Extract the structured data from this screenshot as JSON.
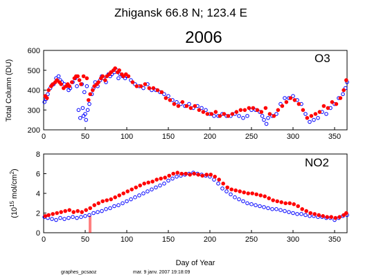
{
  "header": {
    "station": "Zhigansk  66.8 N; 123.4 E",
    "year": "2006"
  },
  "footer": {
    "program": "graphes_pcsaoz",
    "timestamp": "mar. 9 janv. 2007 19:18:09"
  },
  "colors": {
    "am": "#0000ff",
    "pm": "#ff0000",
    "axes": "#000000"
  },
  "chart_data": [
    {
      "type": "scatter",
      "panel_label": "O3",
      "xlabel": "",
      "ylabel": "Total Column  (DU)",
      "xlim": [
        0,
        365
      ],
      "ylim": [
        200,
        600
      ],
      "xticks": [
        "0",
        "50",
        "100",
        "150",
        "200",
        "250",
        "300",
        "350"
      ],
      "yticks": [
        "200",
        "300",
        "400",
        "500",
        "600"
      ],
      "grid": false,
      "series": [
        {
          "color": "#0000ff",
          "marker": "open-circle",
          "x": [
            1,
            3,
            5,
            8,
            10,
            12,
            15,
            18,
            20,
            22,
            25,
            28,
            30,
            32,
            35,
            38,
            40,
            42,
            44,
            46,
            47,
            48,
            49,
            50,
            51,
            52,
            53,
            55,
            58,
            60,
            62,
            65,
            68,
            70,
            72,
            75,
            78,
            80,
            82,
            85,
            88,
            90,
            92,
            95,
            98,
            100,
            105,
            110,
            115,
            120,
            125,
            130,
            135,
            140,
            145,
            150,
            155,
            160,
            165,
            170,
            175,
            180,
            185,
            190,
            195,
            200,
            205,
            210,
            215,
            220,
            225,
            230,
            235,
            240,
            245,
            250,
            255,
            260,
            263,
            265,
            268,
            270,
            275,
            280,
            285,
            290,
            295,
            300,
            305,
            310,
            315,
            320,
            325,
            330,
            335,
            340,
            345,
            350,
            355,
            360,
            363,
            365
          ],
          "y": [
            340,
            355,
            380,
            410,
            425,
            430,
            460,
            470,
            450,
            440,
            430,
            420,
            400,
            410,
            440,
            460,
            420,
            300,
            260,
            430,
            310,
            270,
            390,
            280,
            250,
            420,
            300,
            330,
            380,
            410,
            440,
            420,
            450,
            470,
            460,
            440,
            480,
            470,
            480,
            490,
            500,
            460,
            480,
            470,
            460,
            470,
            450,
            430,
            420,
            410,
            430,
            400,
            400,
            390,
            380,
            370,
            350,
            340,
            330,
            320,
            330,
            310,
            320,
            310,
            300,
            280,
            270,
            270,
            280,
            270,
            270,
            280,
            270,
            260,
            270,
            300,
            300,
            290,
            270,
            250,
            230,
            260,
            270,
            280,
            330,
            360,
            360,
            370,
            350,
            330,
            280,
            240,
            250,
            260,
            290,
            280,
            310,
            330,
            360,
            380,
            410,
            440
          ]
        },
        {
          "color": "#ff0000",
          "marker": "filled-circle",
          "x": [
            2,
            4,
            6,
            9,
            11,
            14,
            16,
            19,
            21,
            24,
            27,
            29,
            31,
            34,
            37,
            39,
            41,
            43,
            45,
            48,
            52,
            54,
            56,
            59,
            61,
            64,
            66,
            69,
            71,
            74,
            76,
            79,
            81,
            84,
            86,
            89,
            91,
            94,
            96,
            99,
            102,
            107,
            112,
            117,
            122,
            127,
            132,
            137,
            142,
            147,
            152,
            157,
            162,
            167,
            172,
            177,
            182,
            187,
            192,
            197,
            202,
            207,
            212,
            217,
            222,
            227,
            232,
            237,
            242,
            247,
            252,
            257,
            262,
            267,
            272,
            277,
            282,
            287,
            292,
            297,
            302,
            307,
            312,
            317,
            322,
            327,
            332,
            337,
            342,
            347,
            352,
            357,
            361,
            364
          ],
          "y": [
            370,
            360,
            400,
            420,
            430,
            440,
            450,
            440,
            430,
            410,
            420,
            430,
            420,
            440,
            460,
            470,
            470,
            450,
            430,
            470,
            460,
            350,
            380,
            400,
            420,
            430,
            440,
            460,
            470,
            450,
            470,
            480,
            490,
            500,
            510,
            490,
            500,
            480,
            470,
            480,
            470,
            440,
            420,
            420,
            430,
            410,
            410,
            400,
            390,
            360,
            350,
            330,
            320,
            340,
            320,
            310,
            320,
            300,
            290,
            280,
            280,
            290,
            270,
            280,
            270,
            280,
            290,
            300,
            300,
            310,
            310,
            300,
            290,
            310,
            280,
            270,
            300,
            320,
            340,
            360,
            350,
            330,
            300,
            260,
            270,
            280,
            290,
            320,
            310,
            340,
            330,
            360,
            400,
            450
          ]
        }
      ]
    },
    {
      "type": "scatter",
      "panel_label": "NO2",
      "xlabel": "Day of Year",
      "ylabel": "(10^15 mol/cm^2)",
      "ylabel_parts": [
        "(10",
        "15",
        " mol/cm",
        "2",
        ")"
      ],
      "xlim": [
        0,
        365
      ],
      "ylim": [
        0,
        8
      ],
      "xticks": [
        "0",
        "50",
        "100",
        "150",
        "200",
        "250",
        "300",
        "350"
      ],
      "yticks": [
        "0",
        "2",
        "4",
        "6",
        "8"
      ],
      "grid": false,
      "series": [
        {
          "color": "#0000ff",
          "marker": "open-circle",
          "x": [
            1,
            5,
            10,
            15,
            20,
            25,
            30,
            35,
            40,
            45,
            50,
            55,
            60,
            65,
            70,
            75,
            80,
            85,
            90,
            95,
            100,
            105,
            110,
            115,
            120,
            125,
            130,
            135,
            140,
            145,
            150,
            155,
            160,
            165,
            170,
            175,
            180,
            185,
            190,
            195,
            200,
            205,
            210,
            215,
            220,
            225,
            230,
            235,
            240,
            245,
            250,
            255,
            260,
            265,
            270,
            275,
            280,
            285,
            290,
            295,
            300,
            305,
            310,
            315,
            320,
            325,
            330,
            335,
            340,
            345,
            350,
            355,
            360,
            365
          ],
          "y": [
            1.6,
            1.5,
            1.4,
            1.3,
            1.5,
            1.4,
            1.5,
            1.6,
            1.5,
            1.6,
            1.7,
            1.8,
            2.0,
            2.1,
            2.2,
            2.4,
            2.5,
            2.7,
            2.8,
            3.0,
            3.2,
            3.4,
            3.6,
            3.8,
            4.0,
            4.2,
            4.4,
            4.6,
            4.8,
            5.0,
            5.3,
            5.5,
            5.7,
            5.8,
            5.9,
            6.0,
            6.1,
            6.0,
            5.9,
            5.8,
            5.7,
            5.4,
            5.0,
            4.5,
            4.2,
            3.9,
            3.6,
            3.4,
            3.2,
            3.0,
            2.9,
            2.8,
            2.7,
            2.6,
            2.5,
            2.4,
            2.4,
            2.3,
            2.2,
            2.1,
            2.0,
            1.9,
            1.9,
            1.8,
            1.7,
            1.7,
            1.6,
            1.6,
            1.5,
            1.5,
            1.3,
            1.5,
            1.7,
            1.8
          ]
        },
        {
          "color": "#ff0000",
          "marker": "filled-circle",
          "x": [
            2,
            6,
            11,
            16,
            21,
            26,
            31,
            36,
            41,
            46,
            51,
            56,
            61,
            66,
            71,
            76,
            81,
            86,
            91,
            96,
            101,
            106,
            111,
            116,
            121,
            126,
            131,
            136,
            141,
            146,
            151,
            156,
            161,
            166,
            171,
            176,
            181,
            186,
            191,
            196,
            201,
            206,
            211,
            216,
            221,
            226,
            231,
            236,
            241,
            246,
            251,
            256,
            261,
            266,
            271,
            276,
            281,
            286,
            291,
            296,
            301,
            306,
            311,
            316,
            321,
            326,
            331,
            336,
            341,
            346,
            351,
            356,
            361,
            364
          ],
          "y": [
            1.7,
            1.8,
            1.9,
            2.0,
            2.1,
            2.2,
            2.3,
            2.1,
            2.2,
            2.1,
            2.3,
            2.5,
            2.8,
            3.0,
            3.2,
            3.3,
            3.4,
            3.6,
            3.8,
            4.0,
            4.2,
            4.4,
            4.6,
            4.8,
            5.0,
            5.1,
            5.2,
            5.4,
            5.5,
            5.6,
            5.8,
            6.0,
            6.1,
            6.0,
            6.0,
            5.9,
            6.0,
            5.9,
            5.8,
            5.9,
            5.9,
            5.7,
            5.4,
            5.0,
            4.6,
            4.4,
            4.3,
            4.2,
            4.1,
            4.0,
            4.0,
            3.9,
            3.8,
            3.7,
            3.5,
            3.3,
            3.2,
            3.1,
            3.0,
            3.0,
            2.9,
            2.7,
            2.4,
            2.2,
            2.0,
            1.9,
            1.8,
            1.7,
            1.6,
            1.6,
            1.5,
            1.6,
            1.8,
            2.0
          ]
        }
      ]
    }
  ]
}
